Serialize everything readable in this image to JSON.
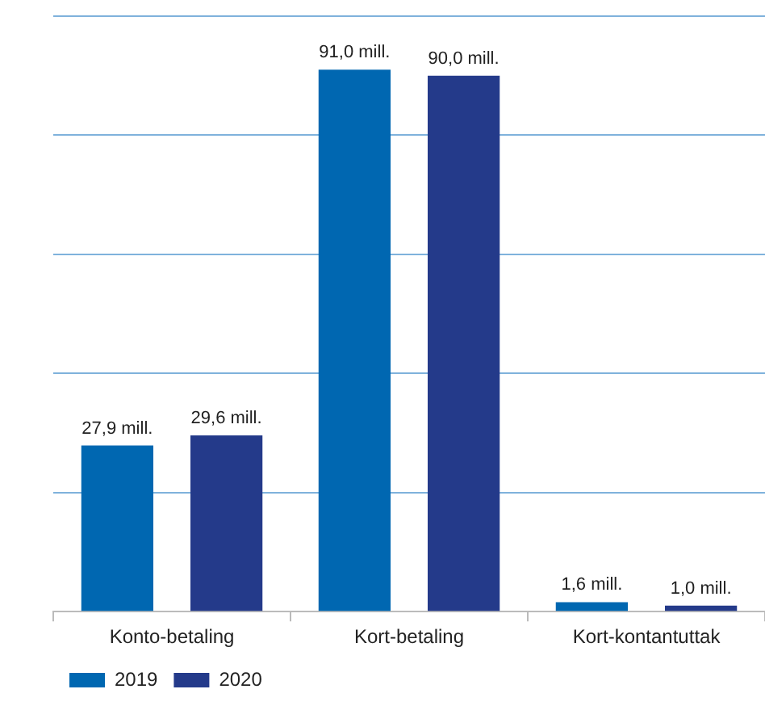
{
  "chart_data": {
    "type": "bar",
    "categories": [
      "Konto-betaling",
      "Kort-betaling",
      "Kort-kontantuttak"
    ],
    "series": [
      {
        "name": "2019",
        "color": "#0067b1",
        "values": [
          27.9,
          91.0,
          1.6
        ],
        "value_labels": [
          "27,9 mill.",
          "91,0 mill.",
          "1,6 mill."
        ]
      },
      {
        "name": "2020",
        "color": "#243a8a",
        "values": [
          29.6,
          90.0,
          1.0
        ],
        "value_labels": [
          "29,6 mill.",
          "90,0 mill.",
          "1,0 mill."
        ]
      }
    ],
    "ylim": [
      0,
      100
    ],
    "yticks": [
      {
        "value": 0,
        "label": null
      },
      {
        "value": 20,
        "label": null
      },
      {
        "value": 40,
        "label": null
      },
      {
        "value": 60,
        "label": null
      },
      {
        "value": 80,
        "label": null
      },
      {
        "value": 100,
        "label": null
      }
    ],
    "tick_labels": "x",
    "grid": "y",
    "legend": "bottom left"
  }
}
